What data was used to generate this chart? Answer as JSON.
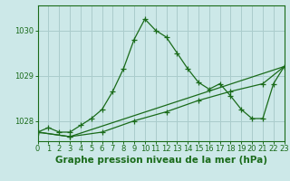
{
  "title": "Graphe pression niveau de la mer (hPa)",
  "bg_color": "#cce8e8",
  "grid_color": "#aacccc",
  "line_color": "#1a6b1a",
  "x_min": 0,
  "x_max": 23,
  "y_min": 1027.55,
  "y_max": 1030.55,
  "yticks": [
    1028,
    1029,
    1030
  ],
  "xticks": [
    0,
    1,
    2,
    3,
    4,
    5,
    6,
    7,
    8,
    9,
    10,
    11,
    12,
    13,
    14,
    15,
    16,
    17,
    18,
    19,
    20,
    21,
    22,
    23
  ],
  "series1_x": [
    0,
    1,
    2,
    3,
    4,
    5,
    6,
    7,
    8,
    9,
    10,
    11,
    12,
    13,
    14,
    15,
    16,
    17,
    18,
    19,
    20,
    21,
    22,
    23
  ],
  "series1_y": [
    1027.75,
    1027.85,
    1027.75,
    1027.75,
    1027.9,
    1028.05,
    1028.25,
    1028.65,
    1029.15,
    1029.8,
    1030.25,
    1030.0,
    1029.85,
    1029.5,
    1029.15,
    1028.85,
    1028.7,
    1028.82,
    1028.55,
    1028.25,
    1028.05,
    1028.05,
    1028.82,
    1029.2
  ],
  "series2_x": [
    0,
    3,
    6,
    9,
    12,
    15,
    18,
    21,
    23
  ],
  "series2_y": [
    1027.75,
    1027.65,
    1027.75,
    1028.0,
    1028.2,
    1028.45,
    1028.65,
    1028.82,
    1029.2
  ],
  "series3_x": [
    0,
    3,
    23
  ],
  "series3_y": [
    1027.75,
    1027.65,
    1029.2
  ],
  "marker": "+",
  "marker_size": 4,
  "linewidth": 0.9,
  "title_fontsize": 7.5,
  "tick_fontsize": 6.0
}
